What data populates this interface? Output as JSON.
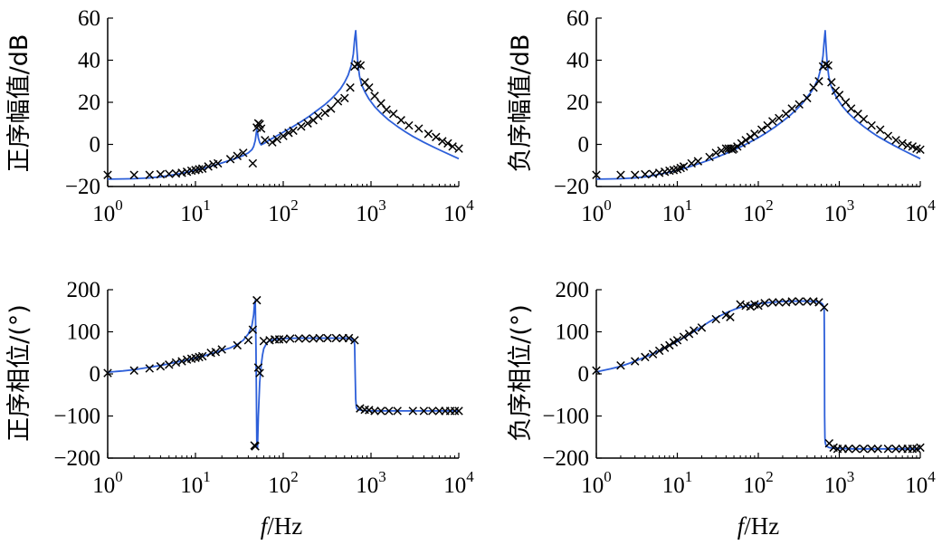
{
  "figure": {
    "xlabel_italic": "f",
    "xlabel_unit": "/Hz",
    "colors": {
      "curve": "#2d5fd9",
      "marker": "#000000",
      "axis": "#000000"
    }
  },
  "chart_data": [
    {
      "id": "pos-mag",
      "type": "line",
      "ylabel": "正序幅值/dB",
      "xlabel": "",
      "xscale": "log",
      "xlim": [
        1,
        10000
      ],
      "ylim": [
        -20,
        60
      ],
      "xticks": [
        1,
        10,
        100,
        1000,
        10000
      ],
      "yticks": [
        -20,
        0,
        20,
        40,
        60
      ],
      "ytick_labels": [
        "−20",
        "0",
        "20",
        "40",
        "60"
      ],
      "series": [
        {
          "kind": "curve",
          "x": [
            1,
            1.5,
            2,
            3,
            4,
            5,
            6,
            8,
            10,
            12,
            15,
            20,
            25,
            30,
            35,
            40,
            44,
            46,
            48,
            49,
            50,
            51,
            52,
            54,
            56,
            60,
            65,
            70,
            80,
            100,
            130,
            160,
            200,
            250,
            300,
            350,
            400,
            450,
            500,
            550,
            600,
            630,
            650,
            670,
            690,
            710,
            740,
            780,
            850,
            950,
            1100,
            1300,
            1600,
            2000,
            2500,
            3000,
            4000,
            5000,
            6000,
            8000,
            10000
          ],
          "y": [
            -16.5,
            -16.4,
            -16.3,
            -15.9,
            -15.4,
            -14.8,
            -14.2,
            -13.2,
            -12.3,
            -11.5,
            -10.4,
            -8.8,
            -7.5,
            -6.4,
            -5.3,
            -4.0,
            -2.5,
            -1.0,
            1.8,
            4.5,
            7.0,
            5.5,
            3.0,
            0.9,
            -0.2,
            0.4,
            1.3,
            2.2,
            3.5,
            5.8,
            8.5,
            10.8,
            13.5,
            16.5,
            19.0,
            21.5,
            24.0,
            26.5,
            29.5,
            33.0,
            38.0,
            43.0,
            50.0,
            54.0,
            45.0,
            38.0,
            32.5,
            28.5,
            25.0,
            21.5,
            18.0,
            14.8,
            11.5,
            8.5,
            5.8,
            3.8,
            1.0,
            -1.0,
            -2.6,
            -5.0,
            -6.8
          ]
        },
        {
          "kind": "markers",
          "x": [
            1,
            2,
            3,
            4,
            5,
            6,
            7,
            8,
            9,
            10,
            11,
            12,
            14,
            16,
            18,
            25,
            30,
            35,
            45,
            50,
            52,
            54,
            56,
            62,
            75,
            85,
            100,
            115,
            130,
            160,
            190,
            220,
            250,
            300,
            350,
            420,
            500,
            580,
            650,
            700,
            760,
            850,
            950,
            1100,
            1300,
            1500,
            1800,
            2200,
            2700,
            3500,
            4500,
            5500,
            6500,
            7500,
            8500,
            10000
          ],
          "y": [
            -14.5,
            -14.5,
            -14.5,
            -14.2,
            -14.0,
            -13.8,
            -13.5,
            -13.0,
            -12.5,
            -12.2,
            -11.8,
            -11.5,
            -10.5,
            -9.5,
            -9.0,
            -7.0,
            -5.5,
            -4.0,
            -9.0,
            8.0,
            10.0,
            9.5,
            7.5,
            2.0,
            1.0,
            2.5,
            4.0,
            5.5,
            6.5,
            8.5,
            10.0,
            11.5,
            13.5,
            15.0,
            17.0,
            20.5,
            22.0,
            27.0,
            37.0,
            38.0,
            37.5,
            29.5,
            27.0,
            23.0,
            19.5,
            16.5,
            14.5,
            11.5,
            9.0,
            7.5,
            5.0,
            3.5,
            1.5,
            0.5,
            -1.0,
            -2.0
          ]
        }
      ]
    },
    {
      "id": "neg-mag",
      "type": "line",
      "ylabel": "负序幅值/dB",
      "xlabel": "",
      "xscale": "log",
      "xlim": [
        1,
        10000
      ],
      "ylim": [
        -20,
        60
      ],
      "xticks": [
        1,
        10,
        100,
        1000,
        10000
      ],
      "yticks": [
        -20,
        0,
        20,
        40,
        60
      ],
      "ytick_labels": [
        "−20",
        "0",
        "20",
        "40",
        "60"
      ],
      "series": [
        {
          "kind": "curve",
          "x": [
            1,
            1.5,
            2,
            3,
            4,
            5,
            6,
            8,
            10,
            12,
            15,
            20,
            25,
            30,
            40,
            50,
            60,
            70,
            80,
            100,
            130,
            160,
            200,
            250,
            300,
            350,
            400,
            450,
            500,
            550,
            600,
            630,
            650,
            670,
            690,
            710,
            740,
            780,
            850,
            950,
            1100,
            1300,
            1600,
            2000,
            2500,
            3000,
            4000,
            5000,
            6000,
            8000,
            10000
          ],
          "y": [
            -16.5,
            -16.4,
            -16.3,
            -15.9,
            -15.4,
            -14.8,
            -14.2,
            -13.2,
            -12.3,
            -11.5,
            -10.3,
            -8.7,
            -7.4,
            -6.2,
            -4.3,
            -2.6,
            -1.2,
            0.0,
            1.2,
            3.2,
            5.9,
            8.2,
            11.0,
            14.0,
            16.8,
            19.5,
            22.5,
            25.0,
            28.0,
            31.5,
            37.0,
            42.0,
            49.0,
            54.0,
            45.0,
            38.0,
            32.5,
            28.5,
            25.0,
            21.5,
            18.0,
            14.8,
            11.5,
            8.5,
            5.8,
            3.8,
            1.0,
            -1.0,
            -2.6,
            -5.0,
            -6.8
          ]
        },
        {
          "kind": "markers",
          "x": [
            1,
            2,
            3,
            4,
            5,
            6,
            7,
            8,
            9,
            10,
            11,
            12,
            15,
            18,
            25,
            30,
            35,
            40,
            43,
            46,
            48,
            50,
            55,
            62,
            70,
            80,
            90,
            110,
            130,
            150,
            180,
            220,
            260,
            320,
            400,
            480,
            560,
            630,
            680,
            730,
            800,
            900,
            1000,
            1200,
            1400,
            1700,
            2000,
            2500,
            3200,
            4000,
            5000,
            6000,
            7000,
            8000,
            9000,
            10000
          ],
          "y": [
            -14.5,
            -14.5,
            -14.5,
            -14.2,
            -14.0,
            -13.5,
            -13.0,
            -12.5,
            -12.2,
            -11.8,
            -11.2,
            -10.5,
            -9.0,
            -8.0,
            -6.0,
            -4.0,
            -3.0,
            -2.0,
            -2.0,
            -2.0,
            -2.5,
            -2.0,
            -1.0,
            0.5,
            2.0,
            3.5,
            5.0,
            7.0,
            9.0,
            11.0,
            12.5,
            14.5,
            17.0,
            19.0,
            22.0,
            27.0,
            30.0,
            37.0,
            38.0,
            37.5,
            29.5,
            25.5,
            23.5,
            20.0,
            17.0,
            14.5,
            12.0,
            9.0,
            7.0,
            4.0,
            2.0,
            0.5,
            -0.5,
            -1.0,
            -2.0,
            -2.5
          ]
        }
      ]
    },
    {
      "id": "pos-phase",
      "type": "line",
      "ylabel": "正序相位/(°)",
      "xlabel": "f/Hz",
      "xscale": "log",
      "xlim": [
        1,
        10000
      ],
      "ylim": [
        -200,
        200
      ],
      "xticks": [
        1,
        10,
        100,
        1000,
        10000
      ],
      "yticks": [
        -200,
        -100,
        0,
        100,
        200
      ],
      "ytick_labels": [
        "−200",
        "−100",
        "0",
        "100",
        "200"
      ],
      "series": [
        {
          "kind": "curve",
          "x": [
            1,
            1.5,
            2,
            3,
            4,
            5,
            6,
            8,
            10,
            12,
            15,
            20,
            25,
            30,
            35,
            40,
            44,
            46,
            47,
            48,
            49,
            50,
            51,
            52,
            54,
            56,
            58,
            60,
            65,
            70,
            80,
            100,
            150,
            200,
            300,
            400,
            500,
            580,
            620,
            640,
            650,
            660,
            670,
            680,
            700,
            750,
            800,
            1000,
            1500,
            2000,
            3000,
            5000,
            10000
          ],
          "y": [
            4,
            7,
            10,
            16,
            20,
            24,
            28,
            33,
            37,
            42,
            48,
            56,
            62,
            70,
            80,
            95,
            115,
            140,
            165,
            174,
            60,
            -160,
            -175,
            -100,
            -20,
            20,
            45,
            60,
            74,
            79,
            82,
            84,
            85,
            85,
            85,
            85,
            85,
            84,
            82,
            78,
            70,
            0,
            -60,
            -80,
            -84,
            -86,
            -87,
            -88,
            -88,
            -88,
            -88,
            -88,
            -88
          ]
        },
        {
          "kind": "markers",
          "x": [
            1,
            2,
            3,
            4,
            5,
            6,
            7,
            8,
            9,
            10,
            11,
            12,
            15,
            17,
            20,
            30,
            40,
            45,
            47,
            48,
            50,
            52,
            54,
            60,
            70,
            80,
            90,
            100,
            120,
            150,
            180,
            220,
            260,
            320,
            400,
            480,
            560,
            650,
            750,
            850,
            950,
            1100,
            1300,
            1600,
            2000,
            3000,
            4000,
            5000,
            6000,
            7000,
            8000,
            9000,
            10000
          ],
          "y": [
            2,
            8,
            13,
            18,
            22,
            27,
            30,
            34,
            36,
            38,
            40,
            42,
            50,
            52,
            58,
            68,
            80,
            105,
            -170,
            -172,
            175,
            15,
            2,
            78,
            80,
            82,
            82,
            82,
            84,
            84,
            84,
            84,
            85,
            85,
            85,
            85,
            85,
            80,
            -82,
            -85,
            -86,
            -88,
            -88,
            -88,
            -88,
            -88,
            -88,
            -88,
            -88,
            -88,
            -88,
            -88,
            -88
          ]
        }
      ]
    },
    {
      "id": "neg-phase",
      "type": "line",
      "ylabel": "负序相位/(°)",
      "xlabel": "f/Hz",
      "xscale": "log",
      "xlim": [
        1,
        10000
      ],
      "ylim": [
        -200,
        200
      ],
      "xticks": [
        1,
        10,
        100,
        1000,
        10000
      ],
      "yticks": [
        -200,
        -100,
        0,
        100,
        200
      ],
      "ytick_labels": [
        "−200",
        "−100",
        "0",
        "100",
        "200"
      ],
      "series": [
        {
          "kind": "curve",
          "x": [
            1,
            1.5,
            2,
            3,
            4,
            5,
            6,
            8,
            10,
            12,
            15,
            20,
            25,
            30,
            40,
            50,
            60,
            80,
            100,
            150,
            200,
            300,
            400,
            500,
            580,
            620,
            640,
            650,
            655,
            660,
            665,
            670,
            680,
            700,
            750,
            800,
            1000,
            1500,
            2000,
            3000,
            5000,
            10000
          ],
          "y": [
            5,
            12,
            18,
            30,
            40,
            48,
            55,
            67,
            77,
            86,
            97,
            112,
            124,
            133,
            145,
            153,
            158,
            164,
            167,
            170,
            172,
            173,
            173,
            172,
            170,
            166,
            160,
            150,
            60,
            -100,
            -150,
            -162,
            -168,
            -172,
            -175,
            -176,
            -177,
            -178,
            -178,
            -178,
            -178,
            -178
          ]
        },
        {
          "kind": "markers",
          "x": [
            1,
            2,
            3,
            4,
            5,
            6,
            7,
            8,
            9,
            10,
            12,
            14,
            16,
            20,
            30,
            40,
            45,
            60,
            70,
            80,
            90,
            100,
            120,
            150,
            180,
            220,
            260,
            320,
            400,
            480,
            560,
            650,
            750,
            850,
            950,
            1100,
            1300,
            1600,
            2000,
            2500,
            3000,
            4000,
            5000,
            6000,
            7000,
            8000,
            9000,
            10000
          ],
          "y": [
            8,
            20,
            30,
            40,
            47,
            55,
            62,
            68,
            75,
            80,
            88,
            95,
            103,
            110,
            130,
            140,
            135,
            165,
            162,
            160,
            165,
            162,
            168,
            170,
            170,
            170,
            172,
            172,
            172,
            172,
            170,
            158,
            -165,
            -175,
            -178,
            -178,
            -178,
            -178,
            -178,
            -178,
            -178,
            -178,
            -178,
            -178,
            -178,
            -178,
            -178,
            -175
          ]
        }
      ]
    }
  ]
}
